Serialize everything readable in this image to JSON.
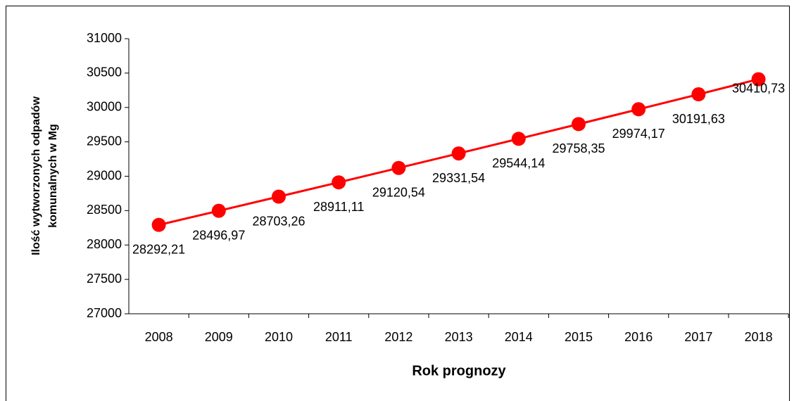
{
  "chart_data": {
    "type": "line",
    "ylabel": [
      "Ilość wytworzonych odpadów",
      "komunalnych w Mg"
    ],
    "xlabel": "Rok prognozy",
    "categories": [
      "2008",
      "2009",
      "2010",
      "2011",
      "2012",
      "2013",
      "2014",
      "2015",
      "2016",
      "2017",
      "2018"
    ],
    "series": [
      {
        "color": "#ff0000",
        "values": [
          28292.21,
          28496.97,
          28703.26,
          28911.11,
          29120.54,
          29331.54,
          29544.14,
          29758.35,
          29974.17,
          30191.63,
          30410.73
        ],
        "value_labels": [
          "28292,21",
          "28496,97",
          "28703,26",
          "28911,11",
          "29120,54",
          "29331,54",
          "29544,14",
          "29758,35",
          "29974,17",
          "30191,63",
          "30410,73"
        ]
      }
    ],
    "ylim": [
      27000,
      31000
    ],
    "yticks": [
      27000,
      27500,
      28000,
      28500,
      29000,
      29500,
      30000,
      30500,
      31000
    ]
  }
}
